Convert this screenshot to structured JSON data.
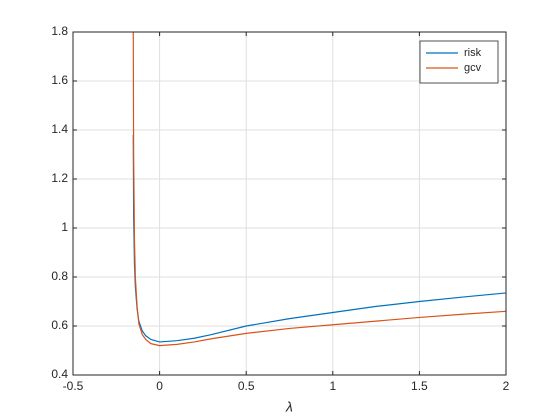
{
  "chart_data": {
    "type": "line",
    "x_label": "λ",
    "x": [
      -0.152,
      -0.15,
      -0.145,
      -0.14,
      -0.13,
      -0.12,
      -0.1,
      -0.08,
      -0.05,
      0,
      0.1,
      0.2,
      0.3,
      0.5,
      0.75,
      1,
      1.25,
      1.5,
      1.75,
      2
    ],
    "series": [
      {
        "name": "risk",
        "color": "#0072bd",
        "values": [
          1.38,
          1.05,
          0.85,
          0.76,
          0.67,
          0.62,
          0.58,
          0.56,
          0.545,
          0.535,
          0.54,
          0.55,
          0.565,
          0.6,
          0.63,
          0.655,
          0.68,
          0.7,
          0.718,
          0.735
        ]
      },
      {
        "name": "gcv",
        "color": "#d95319",
        "values": [
          1.8,
          1.3,
          0.95,
          0.8,
          0.68,
          0.61,
          0.565,
          0.545,
          0.528,
          0.52,
          0.525,
          0.535,
          0.548,
          0.57,
          0.59,
          0.605,
          0.62,
          0.635,
          0.648,
          0.66
        ]
      }
    ],
    "xlim": [
      -0.5,
      2
    ],
    "xticks": [
      -0.5,
      0,
      0.5,
      1,
      1.5,
      2
    ],
    "ylim": [
      0.4,
      1.8
    ],
    "yticks": [
      0.4,
      0.6,
      0.8,
      1,
      1.2,
      1.4,
      1.6,
      1.8
    ],
    "grid": true,
    "legend": "northeast"
  }
}
